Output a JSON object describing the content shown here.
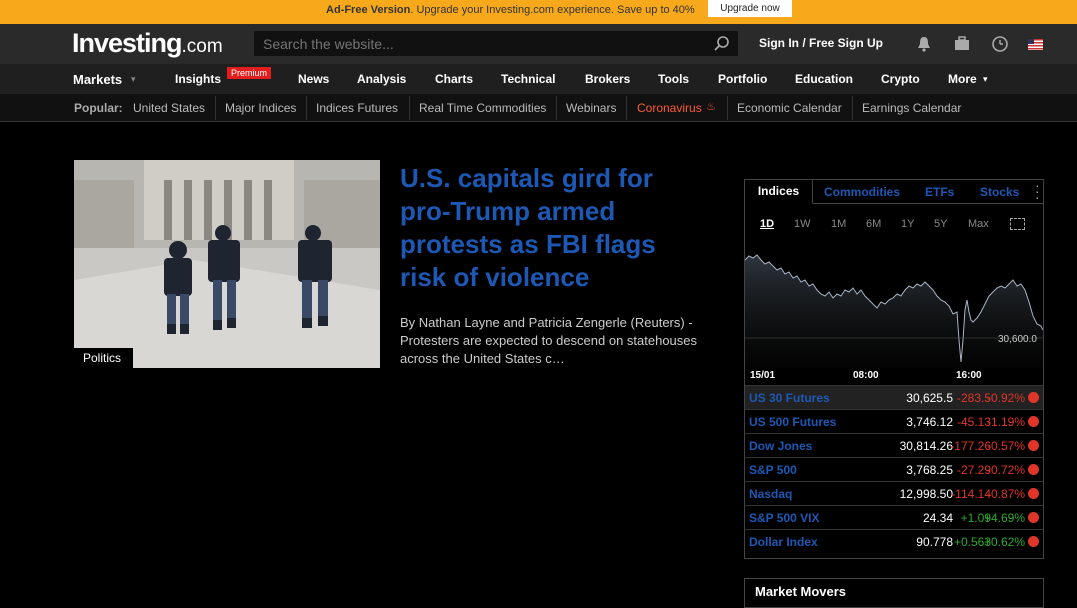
{
  "adbar": {
    "bold": "Ad-Free Version",
    "text": ". Upgrade your Investing.com experience. Save up to 40%",
    "button": "Upgrade now"
  },
  "header": {
    "logo_main": "Investing",
    "logo_suffix": ".com",
    "search_placeholder": "Search the website...",
    "signin": "Sign In / Free Sign Up"
  },
  "nav": {
    "items": [
      "Markets",
      "Insights",
      "News",
      "Analysis",
      "Charts",
      "Technical",
      "Brokers",
      "Tools",
      "Portfolio",
      "Education",
      "Crypto",
      "More"
    ],
    "premium_badge": "Premium"
  },
  "popular": {
    "label": "Popular:",
    "items": [
      "United States",
      "Major Indices",
      "Indices Futures",
      "Real Time Commodities",
      "Webinars",
      "Coronavirus",
      "Economic Calendar",
      "Earnings Calendar"
    ]
  },
  "article": {
    "category": "Politics",
    "headline": "U.S. capitals gird for pro-Trump armed protests as FBI flags risk of violence",
    "byline": "By Nathan Layne and Patricia Zengerle (Reuters) - Protesters are expected to descend on statehouses across the United States c…"
  },
  "markets_panel": {
    "tabs": [
      "Indices",
      "Commodities",
      "ETFs",
      "Stocks"
    ],
    "ranges": [
      "1D",
      "1W",
      "1M",
      "6M",
      "1Y",
      "5Y",
      "Max"
    ],
    "chart_label": "30,600.0",
    "time_labels": [
      "15/01",
      "08:00",
      "16:00"
    ],
    "rows": [
      {
        "name": "US 30 Futures",
        "last": "30,625.5",
        "chg": "-283.5",
        "pct": "-0.92%"
      },
      {
        "name": "US 500 Futures",
        "last": "3,746.12",
        "chg": "-45.13",
        "pct": "-1.19%"
      },
      {
        "name": "Dow Jones",
        "last": "30,814.26",
        "chg": "-177.26",
        "pct": "-0.57%"
      },
      {
        "name": "S&P 500",
        "last": "3,768.25",
        "chg": "-27.29",
        "pct": "-0.72%"
      },
      {
        "name": "Nasdaq",
        "last": "12,998.50",
        "chg": "-114.14",
        "pct": "-0.87%"
      },
      {
        "name": "S&P 500 VIX",
        "last": "24.34",
        "chg": "+1.09",
        "pct": "+4.69%"
      },
      {
        "name": "Dollar Index",
        "last": "90.778",
        "chg": "+0.563",
        "pct": "+0.62%"
      }
    ]
  },
  "market_movers": {
    "title": "Market Movers"
  }
}
